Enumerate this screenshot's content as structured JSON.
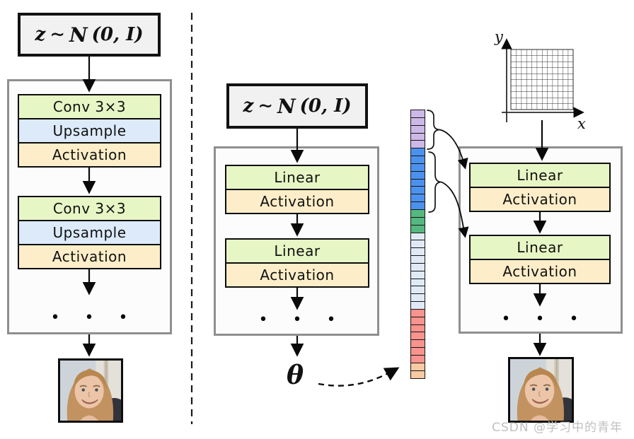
{
  "left": {
    "latent": {
      "z": "z",
      "tilde": "∼",
      "dist": "N",
      "args": "(0, I)"
    },
    "stack1": [
      "Conv 3×3",
      "Upsample",
      "Activation"
    ],
    "stack2": [
      "Conv 3×3",
      "Upsample",
      "Activation"
    ],
    "dots": "• • •"
  },
  "middle": {
    "latent": {
      "z": "z",
      "tilde": "∼",
      "dist": "N",
      "args": "(0, I)"
    },
    "stack1": [
      "Linear",
      "Activation"
    ],
    "stack2": [
      "Linear",
      "Activation"
    ],
    "dots": "• • •",
    "theta": "θ"
  },
  "vector": {
    "groups": [
      {
        "name": "purple",
        "color": "#cdb9e7",
        "count": 5
      },
      {
        "name": "blue",
        "color": "#4b92ef",
        "count": 8
      },
      {
        "name": "green",
        "color": "#55b880",
        "count": 3
      },
      {
        "name": "light-blue",
        "color": "#dfeaf6",
        "count": 10
      },
      {
        "name": "salmon",
        "color": "#f8938d",
        "count": 7
      },
      {
        "name": "peach",
        "color": "#f8caa1",
        "count": 2
      }
    ]
  },
  "right": {
    "axes": {
      "x_label": "x",
      "y_label": "y",
      "grid_cols": 12,
      "grid_rows": 10
    },
    "stack1": [
      "Linear",
      "Activation"
    ],
    "stack2": [
      "Linear",
      "Activation"
    ],
    "dots": "• • •"
  },
  "watermark": "CSDN @学习中的青年",
  "colors": {
    "block_green": "#e7f6c5",
    "block_blue": "#dceafa",
    "block_orange": "#fdeec9",
    "container_border": "#8f8f8f",
    "latent_bg": "#f1f1f2"
  }
}
